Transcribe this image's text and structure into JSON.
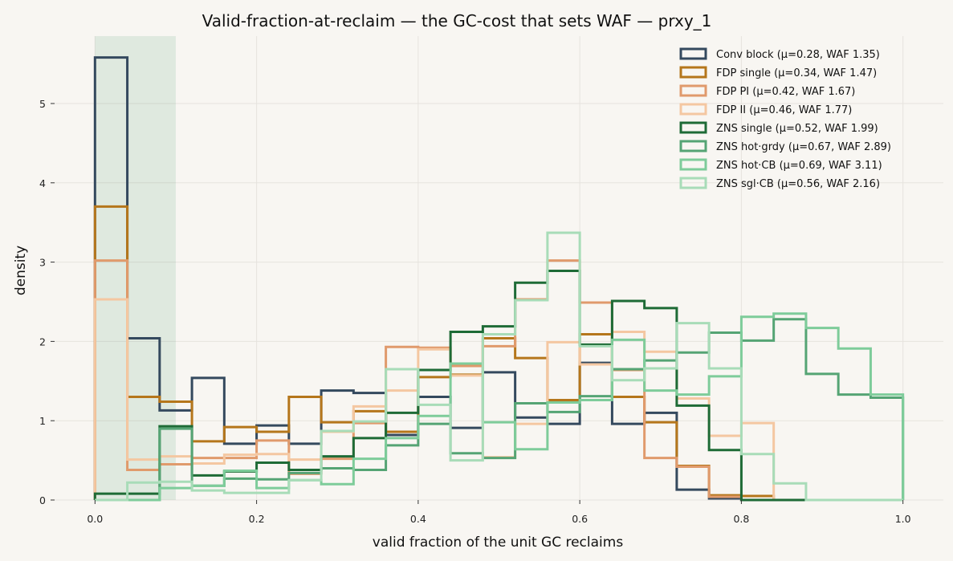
{
  "chart_data": {
    "type": "histogram",
    "title": "Valid-fraction-at-reclaim — the GC-cost that sets WAF — prxy_1",
    "xlabel": "valid fraction of the unit GC reclaims",
    "ylabel": "density",
    "xlim": [
      -0.05,
      1.05
    ],
    "ylim": [
      0,
      5.85
    ],
    "xticks": [
      0.0,
      0.2,
      0.4,
      0.6,
      0.8,
      1.0
    ],
    "xtick_labels": [
      "0.0",
      "0.2",
      "0.4",
      "0.6",
      "0.8",
      "1.0"
    ],
    "yticks": [
      0,
      1,
      2,
      3,
      4,
      5
    ],
    "ytick_labels": [
      "0",
      "1",
      "2",
      "3",
      "4",
      "5"
    ],
    "grid": true,
    "legend_position": "top-right",
    "highlight_band": {
      "x0": 0.0,
      "x1": 0.1,
      "color": "#2e8b57"
    },
    "bin_edges": [
      0.0,
      0.04,
      0.08,
      0.12,
      0.16,
      0.2,
      0.24,
      0.28,
      0.32,
      0.36,
      0.4,
      0.44,
      0.48,
      0.52,
      0.56,
      0.6,
      0.64,
      0.68,
      0.72,
      0.76,
      0.8,
      0.84,
      0.88,
      0.92,
      0.96,
      1.0
    ],
    "series": [
      {
        "name": "Conv block  (μ=0.28, WAF 1.35)",
        "color": "#34495e",
        "values": [
          5.58,
          2.04,
          1.13,
          1.54,
          0.71,
          0.94,
          0.71,
          1.38,
          1.35,
          0.82,
          1.3,
          0.91,
          1.61,
          1.04,
          0.96,
          1.73,
          0.96,
          1.1,
          0.13,
          0.02,
          0,
          0,
          0,
          0,
          0
        ]
      },
      {
        "name": "FDP single  (μ=0.34, WAF 1.47)",
        "color": "#b5761b",
        "values": [
          3.7,
          1.3,
          1.24,
          0.74,
          0.92,
          0.86,
          1.3,
          0.98,
          1.12,
          0.86,
          1.55,
          1.58,
          2.04,
          1.79,
          1.26,
          2.09,
          1.3,
          0.98,
          0.43,
          0.06,
          0.05,
          0,
          0,
          0,
          0
        ]
      },
      {
        "name": "FDP PI  (μ=0.42, WAF 1.67)",
        "color": "#e09a6c",
        "values": [
          3.02,
          0.38,
          0.45,
          0.53,
          0.53,
          0.75,
          0.33,
          0.52,
          0.97,
          1.93,
          1.92,
          1.69,
          1.94,
          2.53,
          3.02,
          2.49,
          1.64,
          0.53,
          0.42,
          0.04,
          0,
          0,
          0,
          0,
          0
        ]
      },
      {
        "name": "FDP II  (μ=0.46, WAF 1.77)",
        "color": "#f4c7a1",
        "values": [
          2.53,
          0.51,
          0.55,
          0.46,
          0.57,
          0.58,
          0.51,
          0.86,
          1.18,
          1.38,
          1.9,
          1.57,
          0.54,
          0.96,
          1.99,
          1.71,
          2.12,
          1.87,
          1.28,
          0.81,
          0.97,
          0,
          0,
          0,
          0
        ]
      },
      {
        "name": "ZNS single  (μ=0.52, WAF 1.99)",
        "color": "#1e6b36",
        "values": [
          0.08,
          0.08,
          0.93,
          0.31,
          0.36,
          0.47,
          0.38,
          0.55,
          0.78,
          1.1,
          1.64,
          2.12,
          2.19,
          2.74,
          2.89,
          1.96,
          2.51,
          2.42,
          1.19,
          0.63,
          0,
          0,
          0,
          0,
          0
        ]
      },
      {
        "name": "ZNS hot·grdy  (μ=0.67, WAF 2.89)",
        "color": "#55a474",
        "values": [
          0,
          0,
          0.9,
          0.18,
          0.27,
          0.26,
          0.34,
          0.4,
          0.38,
          0.69,
          0.96,
          0.59,
          0.53,
          1.22,
          1.11,
          1.31,
          1.65,
          1.76,
          1.86,
          2.11,
          2.01,
          2.28,
          1.59,
          1.33,
          1.29
        ]
      },
      {
        "name": "ZNS hot·CB  (μ=0.69, WAF 3.11)",
        "color": "#7ecc9a",
        "values": [
          0,
          0,
          0.15,
          0.18,
          0.37,
          0.15,
          0.25,
          0.2,
          0.52,
          0.78,
          1.06,
          1.72,
          0.98,
          0.64,
          1.23,
          1.26,
          2.02,
          1.38,
          1.33,
          1.56,
          2.31,
          2.35,
          2.17,
          1.91,
          1.33
        ]
      },
      {
        "name": "ZNS sgl·CB  (μ=0.56, WAF 2.16)",
        "color": "#a8dcb8",
        "values": [
          0,
          0.22,
          0.23,
          0.12,
          0.09,
          0.09,
          0.25,
          0.87,
          0.99,
          1.65,
          1.2,
          0.5,
          2.09,
          2.52,
          3.37,
          1.94,
          1.51,
          1.66,
          2.23,
          1.66,
          0.58,
          0.21,
          0,
          0,
          0
        ]
      }
    ]
  }
}
